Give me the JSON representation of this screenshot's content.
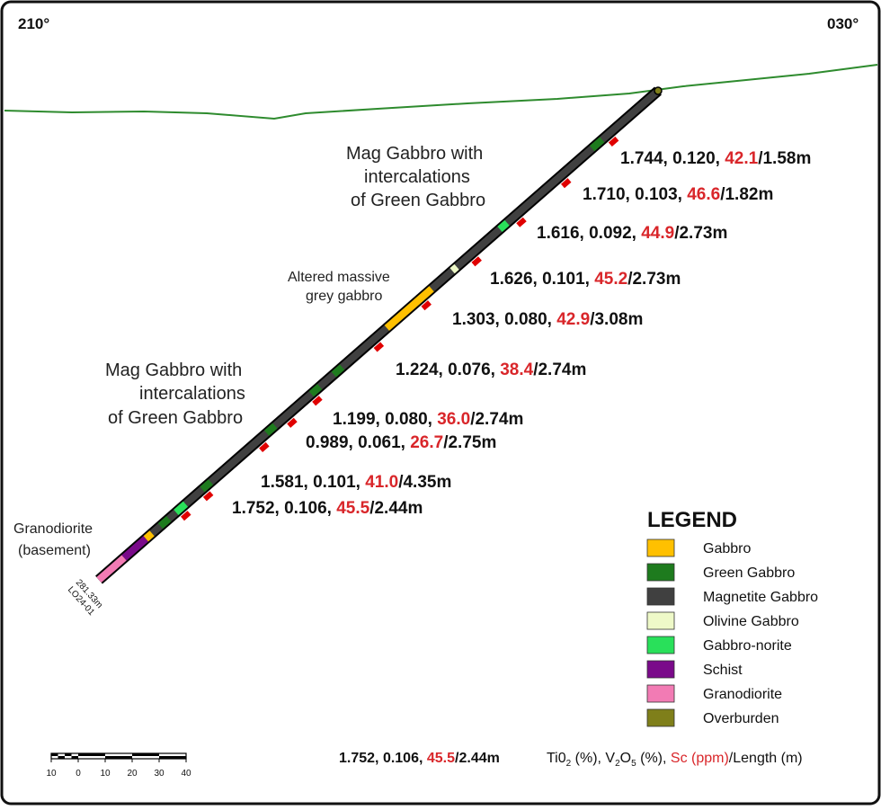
{
  "orientation": {
    "left": "210°",
    "right": "030°"
  },
  "rock_labels": [
    {
      "id": "mag-gabbro-upper",
      "lines": [
        "Mag Gabbro with",
        "intercalations",
        "of Green Gabbro"
      ]
    },
    {
      "id": "altered-gabbro",
      "lines": [
        "Altered massive",
        "grey gabbro"
      ]
    },
    {
      "id": "mag-gabbro-lower",
      "lines": [
        "Mag Gabbro with",
        "intercalations",
        "of Green Gabbro"
      ]
    },
    {
      "id": "granodiorite",
      "lines": [
        "Granodiorite",
        "(basement)"
      ]
    }
  ],
  "hole": {
    "depth": "281.33m",
    "id": "LO24-01"
  },
  "intercepts": [
    {
      "ti": "1.744",
      "v": "0.120",
      "sc": "42.1",
      "len": "1.58m"
    },
    {
      "ti": "1.710",
      "v": "0.103",
      "sc": "46.6",
      "len": "1.82m"
    },
    {
      "ti": "1.616",
      "v": "0.092",
      "sc": "44.9",
      "len": "2.73m"
    },
    {
      "ti": "1.626",
      "v": "0.101",
      "sc": "45.2",
      "len": "2.73m"
    },
    {
      "ti": "1.303",
      "v": "0.080",
      "sc": "42.9",
      "len": "3.08m"
    },
    {
      "ti": "1.224",
      "v": "0.076",
      "sc": "38.4",
      "len": "2.74m"
    },
    {
      "ti": "1.199",
      "v": "0.080",
      "sc": "36.0",
      "len": "2.74m"
    },
    {
      "ti": "0.989",
      "v": "0.061",
      "sc": "26.7",
      "len": "2.75m"
    },
    {
      "ti": "1.581",
      "v": "0.101",
      "sc": "41.0",
      "len": "4.35m"
    },
    {
      "ti": "1.752",
      "v": "0.106",
      "sc": "45.5",
      "len": "2.44m"
    }
  ],
  "legend": {
    "title": "LEGEND",
    "items": [
      {
        "label": "Gabbro",
        "color": "#ffc000"
      },
      {
        "label": "Green Gabbro",
        "color": "#1e7b1e"
      },
      {
        "label": "Magnetite Gabbro",
        "color": "#404040"
      },
      {
        "label": "Olivine Gabbro",
        "color": "#eef9c8"
      },
      {
        "label": "Gabbro-norite",
        "color": "#29e05a"
      },
      {
        "label": "Schist",
        "color": "#7a0a8a"
      },
      {
        "label": "Granodiorite",
        "color": "#f27bb4"
      },
      {
        "label": "Overburden",
        "color": "#7f7f1a"
      }
    ]
  },
  "key": {
    "ti": "1.752",
    "v": "0.106",
    "sc": "45.5",
    "len": "2.44m",
    "desc_ti": "Ti0",
    "desc_ti_sub": "2",
    "desc_ti_unit": " (%), ",
    "desc_v": "V",
    "desc_v_sub1": "2",
    "desc_v_o": "O",
    "desc_v_sub2": "5",
    "desc_v_unit": " (%), ",
    "desc_sc": "Sc (ppm)",
    "desc_len": "/Length (m)"
  },
  "scale_bar": {
    "ticks": [
      "10",
      "0",
      "10",
      "20",
      "30",
      "40"
    ]
  },
  "colors": {
    "topography": "#2e8b2e",
    "assay_marker": "#e00000",
    "sc_text": "#d9262a"
  }
}
